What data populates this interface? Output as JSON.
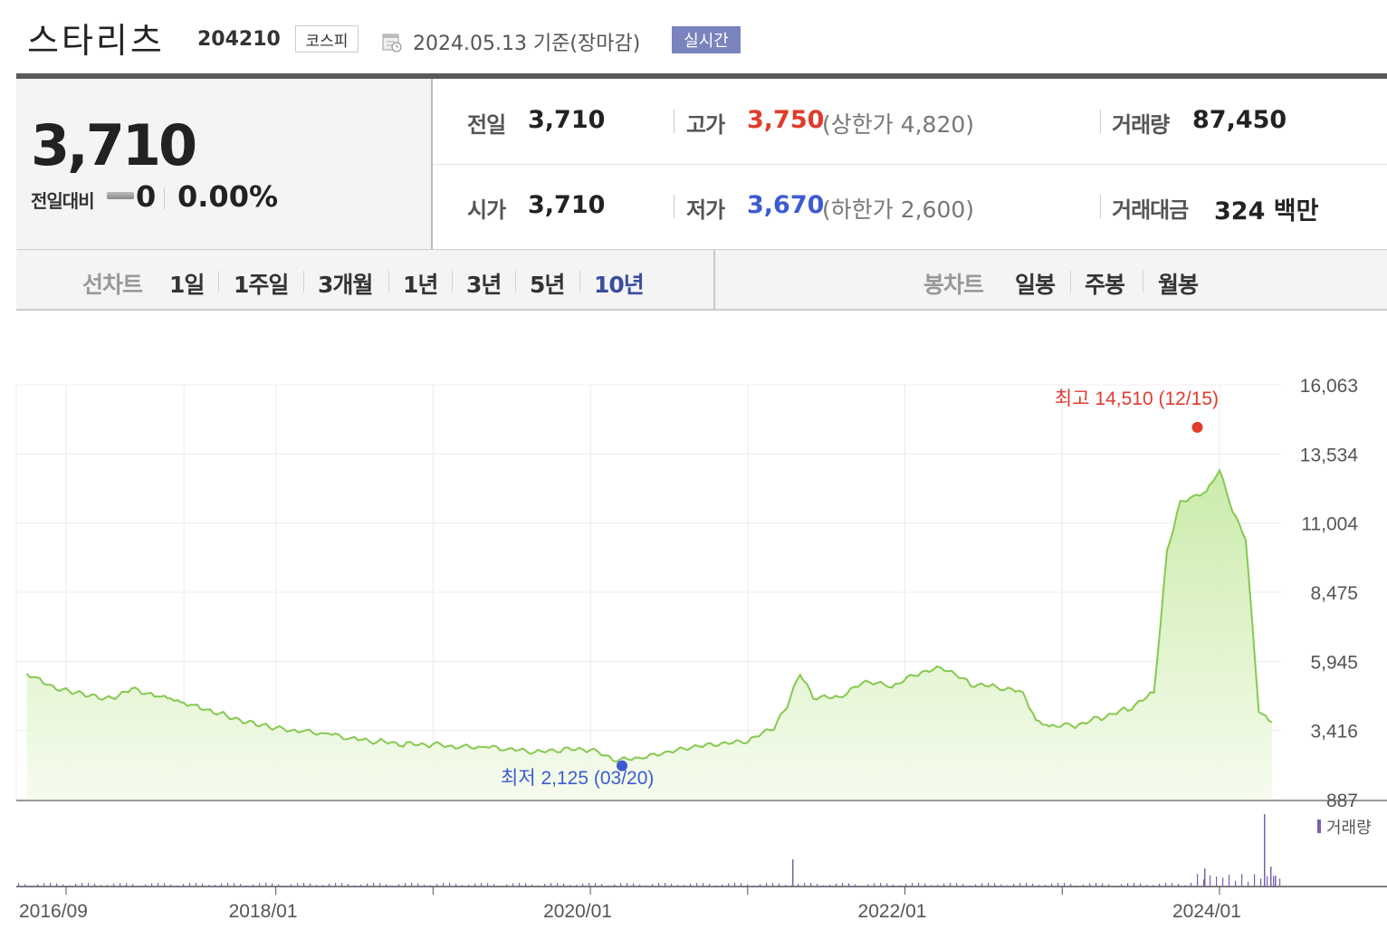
{
  "header": {
    "stock_name": "스타리츠",
    "stock_code": "204210",
    "market": "코스피",
    "date_text": "2024.05.13  기준(장마감)",
    "realtime_label": "실시간"
  },
  "price": {
    "current": "3,710",
    "change_label": "전일대비",
    "change_value": "0",
    "change_rate": "0.00%"
  },
  "stats": {
    "prev_label": "전일",
    "prev_value": "3,710",
    "open_label": "시가",
    "open_value": "3,710",
    "high_label": "고가",
    "high_value": "3,750",
    "upper_limit": "(상한가 4,820)",
    "low_label": "저가",
    "low_value": "3,670",
    "lower_limit": "(하한가 2,600)",
    "volume_label": "거래량",
    "volume_value": "87,450",
    "amount_label": "거래대금",
    "amount_value": "324 백만"
  },
  "periods": {
    "line_label": "선차트",
    "line_items": [
      "1일",
      "1주일",
      "3개월",
      "1년",
      "3년",
      "5년",
      "10년"
    ],
    "active": "10년",
    "candle_label": "봉차트",
    "candle_items": [
      "일봉",
      "주봉",
      "월봉"
    ]
  },
  "colors": {
    "up": "#e03b2c",
    "down": "#3d5bd1",
    "line": "#86c94f",
    "volume": "#7a5fb0",
    "active_tab": "#3a4ea0"
  },
  "chart_data": {
    "type": "area",
    "y_ticks": [
      "16,063",
      "13,534",
      "11,004",
      "8,475",
      "5,945",
      "3,416",
      "887"
    ],
    "ylim": [
      887,
      16063
    ],
    "x_ticks": [
      "2016/09",
      "2018/01",
      "2020/01",
      "2022/01",
      "2024/01"
    ],
    "max_annotation": "최고 14,510 (12/15)",
    "min_annotation": "최저 2,125 (03/20)",
    "max_value": 14510,
    "min_value": 2125,
    "volume_legend": "거래량",
    "series": [
      {
        "x": [
          "2016/06",
          "2016/07",
          "2016/08",
          "2016/09",
          "2016/10",
          "2016/11",
          "2016/12",
          "2017/01",
          "2017/02",
          "2017/03",
          "2017/04",
          "2017/05",
          "2017/06",
          "2017/07",
          "2017/08",
          "2017/09",
          "2017/10",
          "2017/11",
          "2017/12",
          "2018/01",
          "2018/03",
          "2018/05",
          "2018/07",
          "2018/09",
          "2018/11",
          "2019/01",
          "2019/03",
          "2019/05",
          "2019/07",
          "2019/09",
          "2019/11",
          "2020/01",
          "2020/03",
          "2020/05",
          "2020/07",
          "2020/09",
          "2020/11",
          "2021/01",
          "2021/03",
          "2021/04",
          "2021/05",
          "2021/06",
          "2021/08",
          "2021/10",
          "2021/12",
          "2022/02",
          "2022/04",
          "2022/06",
          "2022/08",
          "2022/10",
          "2022/11",
          "2022/12",
          "2023/02",
          "2023/04",
          "2023/06",
          "2023/08",
          "2023/09",
          "2023/10",
          "2023/11",
          "2023/12",
          "2024/01",
          "2024/02",
          "2024/03",
          "2024/04",
          "2024/05"
        ],
        "values": [
          5500,
          5300,
          5000,
          4900,
          4800,
          4700,
          4600,
          4700,
          5000,
          4800,
          4700,
          4600,
          4400,
          4300,
          4100,
          4000,
          3800,
          3700,
          3600,
          3500,
          3400,
          3300,
          3100,
          3000,
          2900,
          2900,
          2800,
          2800,
          2700,
          2600,
          2700,
          2700,
          2300,
          2400,
          2600,
          2800,
          2900,
          3000,
          3500,
          4300,
          5500,
          4600,
          4600,
          5200,
          5000,
          5500,
          5700,
          5100,
          5000,
          4800,
          3800,
          3600,
          3600,
          3900,
          4200,
          4800,
          10000,
          11800,
          12000,
          12200,
          13000,
          11500,
          10500,
          4200,
          3710
        ]
      }
    ]
  }
}
